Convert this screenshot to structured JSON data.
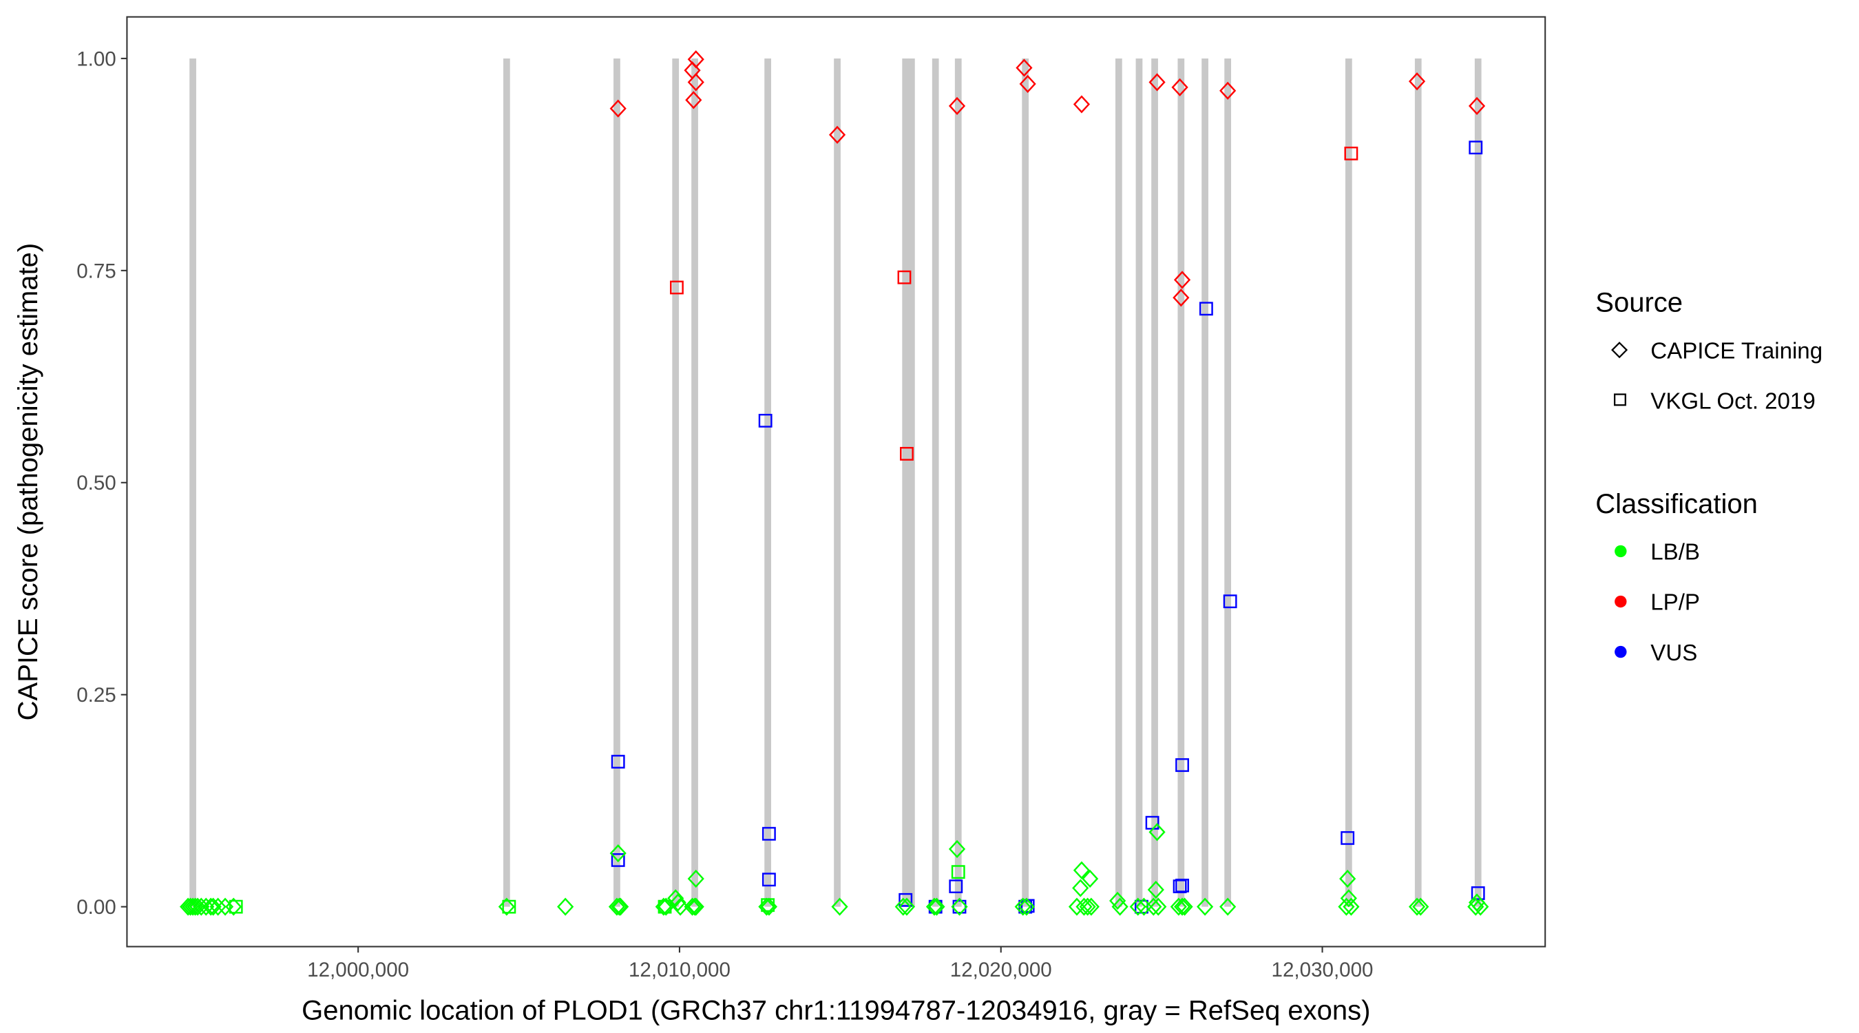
{
  "chart_data": {
    "type": "scatter",
    "xlabel": "Genomic location of PLOD1 (GRCh37 chr1:11994787-12034916, gray = RefSeq exons)",
    "ylabel": "CAPICE score (pathogenicity estimate)",
    "xlim": [
      11992807,
      12036934
    ],
    "ylim": [
      -0.047,
      1.049
    ],
    "x_ticks": [
      12000000,
      12010000,
      12020000,
      12030000
    ],
    "x_tick_labels": [
      "12,000,000",
      "12,010,000",
      "12,020,000",
      "12,030,000"
    ],
    "y_ticks": [
      0,
      0.25,
      0.5,
      0.75,
      1
    ],
    "y_tick_labels": [
      "0.00",
      "0.25",
      "0.50",
      "0.75",
      "1.00"
    ],
    "grid": false,
    "exon_color": "#c8c8c8",
    "exons": [
      11994857,
      12004621,
      12008050,
      12009877,
      12010473,
      12012746,
      12014908,
      12017032,
      12017218,
      12017964,
      12018672,
      12020759,
      12023666,
      12024300,
      12024784,
      12025604,
      12026349,
      12027057,
      12030821,
      12032983,
      12034846
    ],
    "legend": {
      "placement": "right",
      "source_title": "Source",
      "sources": [
        {
          "label": "CAPICE Training",
          "shape": "diamond"
        },
        {
          "label": "VKGL Oct. 2019",
          "shape": "square"
        }
      ],
      "class_title": "Classification",
      "classes": [
        {
          "label": "LB/B",
          "color": "#00ff00"
        },
        {
          "label": "LP/P",
          "color": "#ff0000"
        },
        {
          "label": "VUS",
          "color": "#0000ff"
        }
      ]
    },
    "series": [
      {
        "source": "CAPICE Training",
        "classification": "LP/P",
        "points": [
          [
            12008088,
            0.941
          ],
          [
            12010510,
            0.999
          ],
          [
            12010398,
            0.986
          ],
          [
            12010510,
            0.972
          ],
          [
            12010436,
            0.951
          ],
          [
            12014908,
            0.91
          ],
          [
            12018635,
            0.944
          ],
          [
            12020722,
            0.989
          ],
          [
            12020834,
            0.97
          ],
          [
            12022511,
            0.946
          ],
          [
            12024859,
            0.972
          ],
          [
            12025567,
            0.966
          ],
          [
            12025641,
            0.739
          ],
          [
            12025604,
            0.718
          ],
          [
            12027057,
            0.962
          ],
          [
            12032946,
            0.973
          ],
          [
            12034810,
            0.944
          ]
        ]
      },
      {
        "source": "VKGL Oct. 2019",
        "classification": "LP/P",
        "points": [
          [
            12009914,
            0.73
          ],
          [
            12016995,
            0.742
          ],
          [
            12017070,
            0.534
          ],
          [
            12030897,
            0.888
          ]
        ]
      },
      {
        "source": "VKGL Oct. 2019",
        "classification": "VUS",
        "points": [
          [
            12008088,
            0.171
          ],
          [
            12008088,
            0.055
          ],
          [
            12012672,
            0.573
          ],
          [
            12012784,
            0.086
          ],
          [
            12012784,
            0.032
          ],
          [
            12017032,
            0.008
          ],
          [
            12017964,
            0.0
          ],
          [
            12018598,
            0.024
          ],
          [
            12018710,
            0.0
          ],
          [
            12020759,
            0.0
          ],
          [
            12020834,
            0.001
          ],
          [
            12024374,
            0.0
          ],
          [
            12024710,
            0.099
          ],
          [
            12025641,
            0.167
          ],
          [
            12025641,
            0.025
          ],
          [
            12025567,
            0.024
          ],
          [
            12026387,
            0.705
          ],
          [
            12027132,
            0.36
          ],
          [
            12030785,
            0.081
          ],
          [
            12034772,
            0.895
          ],
          [
            12034846,
            0.016
          ]
        ]
      },
      {
        "source": "VKGL Oct. 2019",
        "classification": "LB/B",
        "points": [
          [
            11996198,
            0.0
          ],
          [
            12004696,
            0.0
          ],
          [
            12009541,
            0.0
          ],
          [
            12012746,
            0.002
          ],
          [
            12018672,
            0.041
          ]
        ]
      },
      {
        "source": "CAPICE Training",
        "classification": "LB/B",
        "points": [
          [
            11994708,
            0
          ],
          [
            11994782,
            0
          ],
          [
            11994857,
            0
          ],
          [
            11994931,
            0
          ],
          [
            11995006,
            0
          ],
          [
            11995118,
            0
          ],
          [
            11995267,
            0
          ],
          [
            11995416,
            0
          ],
          [
            11995490,
            0
          ],
          [
            11995639,
            0
          ],
          [
            11995863,
            0
          ],
          [
            11996124,
            0
          ],
          [
            12004621,
            0
          ],
          [
            12006448,
            0
          ],
          [
            12008050,
            0
          ],
          [
            12008125,
            0
          ],
          [
            12008162,
            0
          ],
          [
            12008088,
            0.063
          ],
          [
            12009504,
            0
          ],
          [
            12009578,
            0
          ],
          [
            12009877,
            0.01
          ],
          [
            12009951,
            0.005
          ],
          [
            12010025,
            0
          ],
          [
            12010398,
            0
          ],
          [
            12010473,
            0
          ],
          [
            12010510,
            0
          ],
          [
            12010510,
            0.033
          ],
          [
            12012709,
            0
          ],
          [
            12012784,
            0
          ],
          [
            12014983,
            0
          ],
          [
            12016958,
            0
          ],
          [
            12017070,
            0
          ],
          [
            12017927,
            0
          ],
          [
            12018002,
            0
          ],
          [
            12018635,
            0.068
          ],
          [
            12018710,
            0
          ],
          [
            12020685,
            0
          ],
          [
            12020797,
            0
          ],
          [
            12022511,
            0.043
          ],
          [
            12022772,
            0.033
          ],
          [
            12022474,
            0.022
          ],
          [
            12022362,
            0
          ],
          [
            12022586,
            0
          ],
          [
            12022697,
            0
          ],
          [
            12022809,
            0
          ],
          [
            12023629,
            0.007
          ],
          [
            12023704,
            0
          ],
          [
            12024263,
            0
          ],
          [
            12024449,
            0
          ],
          [
            12024822,
            0.02
          ],
          [
            12024859,
            0.088
          ],
          [
            12024747,
            0
          ],
          [
            12024896,
            0
          ],
          [
            12025530,
            0
          ],
          [
            12025641,
            0
          ],
          [
            12025716,
            0
          ],
          [
            12026349,
            0
          ],
          [
            12027057,
            0
          ],
          [
            12030785,
            0.033
          ],
          [
            12030821,
            0.01
          ],
          [
            12030748,
            0
          ],
          [
            12030897,
            0
          ],
          [
            12032946,
            0
          ],
          [
            12033058,
            0
          ],
          [
            12034810,
            0.005
          ],
          [
            12034772,
            0
          ],
          [
            12034921,
            0
          ]
        ]
      }
    ]
  }
}
